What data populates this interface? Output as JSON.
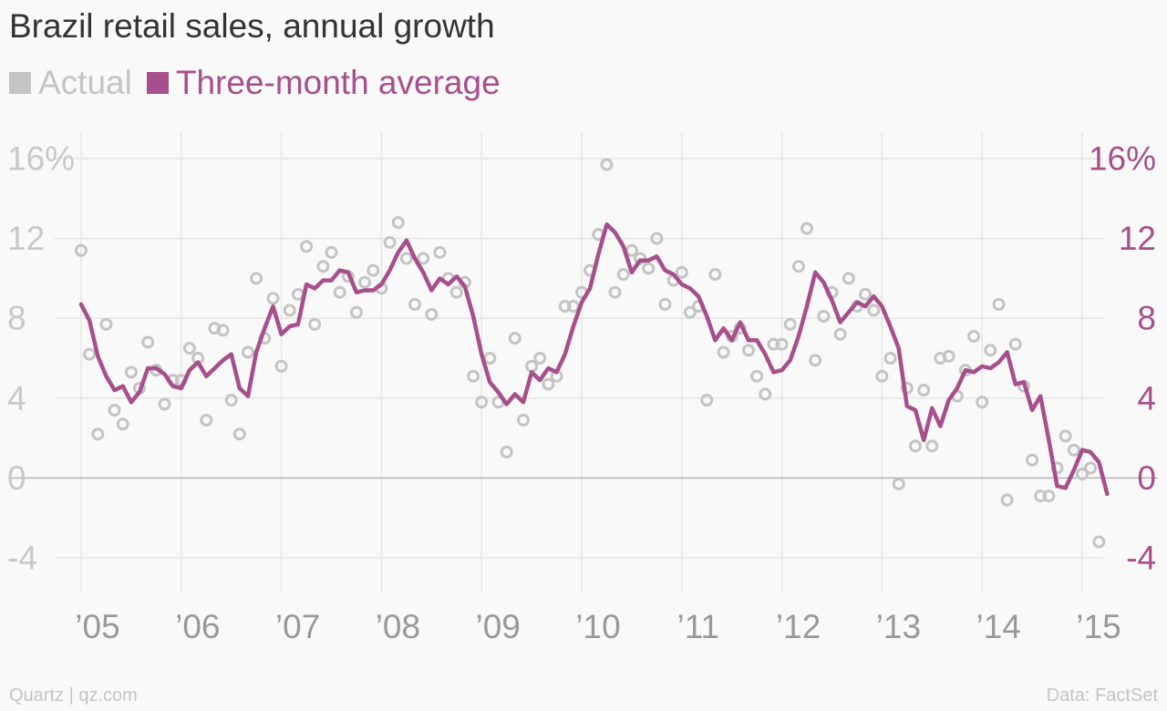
{
  "title": "Brazil retail sales, annual growth",
  "legend": {
    "actual": "Actual",
    "average": "Three-month average"
  },
  "colors": {
    "actual": "#c4c4c4",
    "average": "#a64f8b",
    "grid": "#e6e6e6",
    "zero_line": "#b3b3b3",
    "left_ticks": "#c8c8c8",
    "right_ticks": "#a64f8b",
    "x_ticks": "#999999",
    "title": "#333333"
  },
  "footer": {
    "source": "Quartz | qz.com",
    "data": "Data: FactSet"
  },
  "chart_data": {
    "type": "line",
    "title": "Brazil retail sales, annual growth",
    "xlim": [
      2005,
      2015.33
    ],
    "ylim": [
      -5.5,
      17.5
    ],
    "grid": true,
    "x_ticks": [
      {
        "value": 2005,
        "label": "’05"
      },
      {
        "value": 2006,
        "label": "’06"
      },
      {
        "value": 2007,
        "label": "’07"
      },
      {
        "value": 2008,
        "label": "’08"
      },
      {
        "value": 2009,
        "label": "’09"
      },
      {
        "value": 2010,
        "label": "’10"
      },
      {
        "value": 2011,
        "label": "’11"
      },
      {
        "value": 2012,
        "label": "’12"
      },
      {
        "value": 2013,
        "label": "’13"
      },
      {
        "value": 2014,
        "label": "’14"
      },
      {
        "value": 2015,
        "label": "’15"
      }
    ],
    "y_ticks_left": [
      {
        "value": 16,
        "label": "16%"
      },
      {
        "value": 12,
        "label": "12"
      },
      {
        "value": 8,
        "label": "8"
      },
      {
        "value": 4,
        "label": "4"
      },
      {
        "value": 0,
        "label": "0"
      },
      {
        "value": -4,
        "label": "-4"
      }
    ],
    "y_ticks_right": [
      {
        "value": 16,
        "label": "16%"
      },
      {
        "value": 12,
        "label": "12"
      },
      {
        "value": 8,
        "label": "8"
      },
      {
        "value": 4,
        "label": "4"
      },
      {
        "value": 0,
        "label": "0"
      },
      {
        "value": -4,
        "label": "-4"
      }
    ],
    "series": [
      {
        "name": "Actual",
        "style": "scatter-ring",
        "points": [
          [
            2005.0,
            11.4
          ],
          [
            2005.083,
            6.2
          ],
          [
            2005.167,
            2.2
          ],
          [
            2005.25,
            7.7
          ],
          [
            2005.333,
            3.4
          ],
          [
            2005.417,
            2.7
          ],
          [
            2005.5,
            5.3
          ],
          [
            2005.583,
            4.5
          ],
          [
            2005.667,
            6.8
          ],
          [
            2005.75,
            5.4
          ],
          [
            2005.833,
            3.7
          ],
          [
            2005.917,
            4.9
          ],
          [
            2006.0,
            4.9
          ],
          [
            2006.083,
            6.5
          ],
          [
            2006.167,
            6.0
          ],
          [
            2006.25,
            2.9
          ],
          [
            2006.333,
            7.5
          ],
          [
            2006.417,
            7.4
          ],
          [
            2006.5,
            3.9
          ],
          [
            2006.583,
            2.2
          ],
          [
            2006.667,
            6.3
          ],
          [
            2006.75,
            10.0
          ],
          [
            2006.833,
            7.0
          ],
          [
            2006.917,
            9.0
          ],
          [
            2007.0,
            5.6
          ],
          [
            2007.083,
            8.4
          ],
          [
            2007.167,
            9.2
          ],
          [
            2007.25,
            11.6
          ],
          [
            2007.333,
            7.7
          ],
          [
            2007.417,
            10.6
          ],
          [
            2007.5,
            11.3
          ],
          [
            2007.583,
            9.3
          ],
          [
            2007.667,
            10.1
          ],
          [
            2007.75,
            8.3
          ],
          [
            2007.833,
            9.8
          ],
          [
            2007.917,
            10.4
          ],
          [
            2008.0,
            9.5
          ],
          [
            2008.083,
            11.8
          ],
          [
            2008.167,
            12.8
          ],
          [
            2008.25,
            11.0
          ],
          [
            2008.333,
            8.7
          ],
          [
            2008.417,
            11.0
          ],
          [
            2008.5,
            8.2
          ],
          [
            2008.583,
            11.3
          ],
          [
            2008.667,
            10.0
          ],
          [
            2008.75,
            9.3
          ],
          [
            2008.833,
            9.8
          ],
          [
            2008.917,
            5.1
          ],
          [
            2009.0,
            3.8
          ],
          [
            2009.083,
            6.0
          ],
          [
            2009.167,
            3.8
          ],
          [
            2009.25,
            1.3
          ],
          [
            2009.333,
            7.0
          ],
          [
            2009.417,
            2.9
          ],
          [
            2009.5,
            5.6
          ],
          [
            2009.583,
            6.0
          ],
          [
            2009.667,
            4.7
          ],
          [
            2009.75,
            5.1
          ],
          [
            2009.833,
            8.6
          ],
          [
            2009.917,
            8.6
          ],
          [
            2010.0,
            9.3
          ],
          [
            2010.083,
            10.4
          ],
          [
            2010.167,
            12.2
          ],
          [
            2010.25,
            15.7
          ],
          [
            2010.333,
            9.3
          ],
          [
            2010.417,
            10.2
          ],
          [
            2010.5,
            11.4
          ],
          [
            2010.583,
            11.0
          ],
          [
            2010.667,
            10.5
          ],
          [
            2010.75,
            12.0
          ],
          [
            2010.833,
            8.7
          ],
          [
            2010.917,
            9.9
          ],
          [
            2011.0,
            10.3
          ],
          [
            2011.083,
            8.3
          ],
          [
            2011.167,
            8.6
          ],
          [
            2011.25,
            3.9
          ],
          [
            2011.333,
            10.2
          ],
          [
            2011.417,
            6.3
          ],
          [
            2011.5,
            7.1
          ],
          [
            2011.583,
            7.5
          ],
          [
            2011.667,
            6.4
          ],
          [
            2011.75,
            5.1
          ],
          [
            2011.833,
            4.2
          ],
          [
            2011.917,
            6.7
          ],
          [
            2012.0,
            6.7
          ],
          [
            2012.083,
            7.7
          ],
          [
            2012.167,
            10.6
          ],
          [
            2012.25,
            12.5
          ],
          [
            2012.333,
            5.9
          ],
          [
            2012.417,
            8.1
          ],
          [
            2012.5,
            9.3
          ],
          [
            2012.583,
            7.2
          ],
          [
            2012.667,
            10.0
          ],
          [
            2012.75,
            8.6
          ],
          [
            2012.833,
            9.2
          ],
          [
            2012.917,
            8.4
          ],
          [
            2013.0,
            5.1
          ],
          [
            2013.083,
            6.0
          ],
          [
            2013.167,
            -0.3
          ],
          [
            2013.25,
            4.5
          ],
          [
            2013.333,
            1.6
          ],
          [
            2013.417,
            4.4
          ],
          [
            2013.5,
            1.6
          ],
          [
            2013.583,
            6.0
          ],
          [
            2013.667,
            6.1
          ],
          [
            2013.75,
            4.1
          ],
          [
            2013.833,
            5.4
          ],
          [
            2013.917,
            7.1
          ],
          [
            2014.0,
            3.8
          ],
          [
            2014.083,
            6.4
          ],
          [
            2014.167,
            8.7
          ],
          [
            2014.25,
            -1.1
          ],
          [
            2014.333,
            6.7
          ],
          [
            2014.417,
            4.6
          ],
          [
            2014.5,
            0.9
          ],
          [
            2014.583,
            -0.9
          ],
          [
            2014.667,
            -0.9
          ],
          [
            2014.75,
            0.5
          ],
          [
            2014.833,
            2.1
          ],
          [
            2014.917,
            1.4
          ],
          [
            2015.0,
            0.2
          ],
          [
            2015.083,
            0.5
          ],
          [
            2015.167,
            -3.2
          ]
        ]
      },
      {
        "name": "Three-month average",
        "style": "line",
        "points": [
          [
            2005.0,
            8.7
          ],
          [
            2005.083,
            7.9
          ],
          [
            2005.167,
            6.1
          ],
          [
            2005.25,
            5.1
          ],
          [
            2005.333,
            4.4
          ],
          [
            2005.417,
            4.6
          ],
          [
            2005.5,
            3.8
          ],
          [
            2005.583,
            4.3
          ],
          [
            2005.667,
            5.5
          ],
          [
            2005.75,
            5.5
          ],
          [
            2005.833,
            5.2
          ],
          [
            2005.917,
            4.6
          ],
          [
            2006.0,
            4.5
          ],
          [
            2006.083,
            5.4
          ],
          [
            2006.167,
            5.8
          ],
          [
            2006.25,
            5.1
          ],
          [
            2006.333,
            5.5
          ],
          [
            2006.417,
            5.9
          ],
          [
            2006.5,
            6.2
          ],
          [
            2006.583,
            4.5
          ],
          [
            2006.667,
            4.1
          ],
          [
            2006.75,
            6.3
          ],
          [
            2006.833,
            7.5
          ],
          [
            2006.917,
            8.6
          ],
          [
            2007.0,
            7.2
          ],
          [
            2007.083,
            7.6
          ],
          [
            2007.167,
            7.7
          ],
          [
            2007.25,
            9.7
          ],
          [
            2007.333,
            9.5
          ],
          [
            2007.417,
            9.9
          ],
          [
            2007.5,
            9.9
          ],
          [
            2007.583,
            10.4
          ],
          [
            2007.667,
            10.3
          ],
          [
            2007.75,
            9.3
          ],
          [
            2007.833,
            9.4
          ],
          [
            2007.917,
            9.4
          ],
          [
            2008.0,
            9.7
          ],
          [
            2008.083,
            10.4
          ],
          [
            2008.167,
            11.3
          ],
          [
            2008.25,
            11.9
          ],
          [
            2008.333,
            11.0
          ],
          [
            2008.417,
            10.3
          ],
          [
            2008.5,
            9.4
          ],
          [
            2008.583,
            10.0
          ],
          [
            2008.667,
            9.7
          ],
          [
            2008.75,
            10.1
          ],
          [
            2008.833,
            9.6
          ],
          [
            2008.917,
            8.1
          ],
          [
            2009.0,
            6.2
          ],
          [
            2009.083,
            4.8
          ],
          [
            2009.167,
            4.3
          ],
          [
            2009.25,
            3.7
          ],
          [
            2009.333,
            4.2
          ],
          [
            2009.417,
            3.8
          ],
          [
            2009.5,
            5.3
          ],
          [
            2009.583,
            4.9
          ],
          [
            2009.667,
            5.5
          ],
          [
            2009.75,
            5.3
          ],
          [
            2009.833,
            6.2
          ],
          [
            2009.917,
            7.6
          ],
          [
            2010.0,
            8.8
          ],
          [
            2010.083,
            9.5
          ],
          [
            2010.167,
            11.2
          ],
          [
            2010.25,
            12.7
          ],
          [
            2010.333,
            12.3
          ],
          [
            2010.417,
            11.6
          ],
          [
            2010.5,
            10.3
          ],
          [
            2010.583,
            10.9
          ],
          [
            2010.667,
            10.9
          ],
          [
            2010.75,
            11.1
          ],
          [
            2010.833,
            10.4
          ],
          [
            2010.917,
            10.2
          ],
          [
            2011.0,
            9.7
          ],
          [
            2011.083,
            9.5
          ],
          [
            2011.167,
            9.1
          ],
          [
            2011.25,
            8.1
          ],
          [
            2011.333,
            6.9
          ],
          [
            2011.417,
            7.5
          ],
          [
            2011.5,
            6.9
          ],
          [
            2011.583,
            7.8
          ],
          [
            2011.667,
            6.9
          ],
          [
            2011.75,
            6.9
          ],
          [
            2011.833,
            6.2
          ],
          [
            2011.917,
            5.3
          ],
          [
            2012.0,
            5.4
          ],
          [
            2012.083,
            5.9
          ],
          [
            2012.167,
            7.1
          ],
          [
            2012.25,
            8.6
          ],
          [
            2012.333,
            10.3
          ],
          [
            2012.417,
            9.8
          ],
          [
            2012.5,
            8.9
          ],
          [
            2012.583,
            7.8
          ],
          [
            2012.667,
            8.3
          ],
          [
            2012.75,
            8.8
          ],
          [
            2012.833,
            8.6
          ],
          [
            2012.917,
            9.1
          ],
          [
            2013.0,
            8.6
          ],
          [
            2013.083,
            7.6
          ],
          [
            2013.167,
            6.5
          ],
          [
            2013.25,
            3.6
          ],
          [
            2013.333,
            3.4
          ],
          [
            2013.417,
            1.9
          ],
          [
            2013.5,
            3.5
          ],
          [
            2013.583,
            2.6
          ],
          [
            2013.667,
            3.9
          ],
          [
            2013.75,
            4.5
          ],
          [
            2013.833,
            5.4
          ],
          [
            2013.917,
            5.3
          ],
          [
            2014.0,
            5.6
          ],
          [
            2014.083,
            5.5
          ],
          [
            2014.167,
            5.8
          ],
          [
            2014.25,
            6.3
          ],
          [
            2014.333,
            4.7
          ],
          [
            2014.417,
            4.8
          ],
          [
            2014.5,
            3.4
          ],
          [
            2014.583,
            4.1
          ],
          [
            2014.667,
            1.9
          ],
          [
            2014.75,
            -0.4
          ],
          [
            2014.833,
            -0.5
          ],
          [
            2014.917,
            0.4
          ],
          [
            2015.0,
            1.4
          ],
          [
            2015.083,
            1.3
          ],
          [
            2015.167,
            0.8
          ],
          [
            2015.25,
            -0.8
          ]
        ]
      }
    ]
  }
}
